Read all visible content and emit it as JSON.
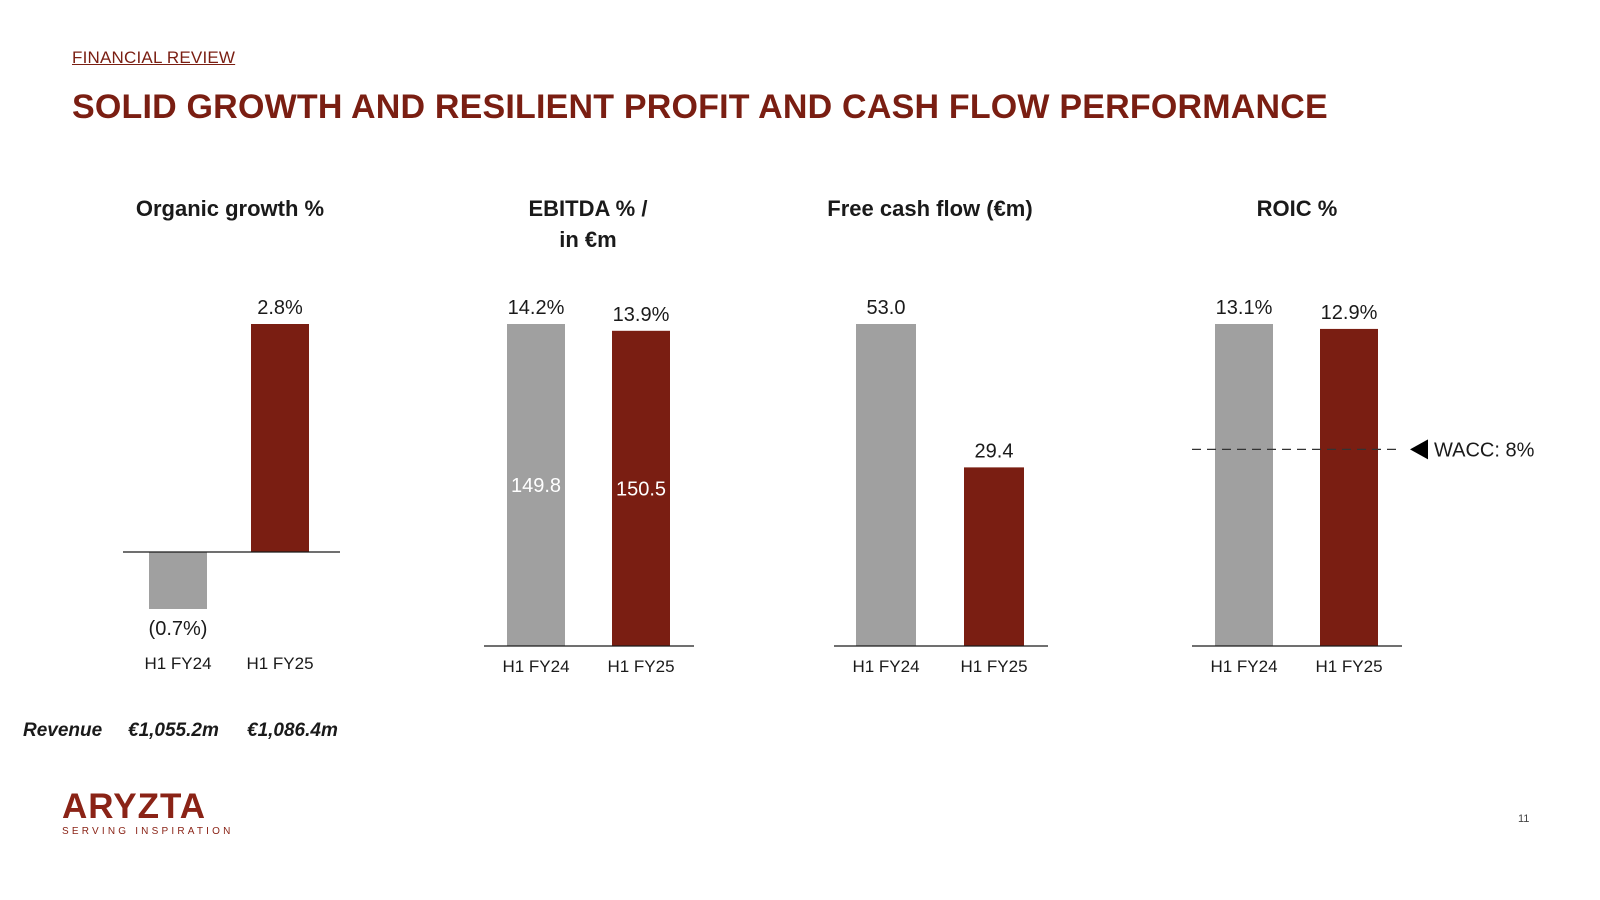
{
  "header": {
    "section": "FINANCIAL REVIEW",
    "title": "SOLID GROWTH AND RESILIENT PROFIT AND CASH FLOW PERFORMANCE"
  },
  "colors": {
    "prior": "#a0a0a0",
    "current": "#7a1e12",
    "brand": "#8a2316"
  },
  "chart_data": [
    {
      "type": "bar",
      "title": "Organic growth %",
      "categories": [
        "H1 FY24",
        "H1 FY25"
      ],
      "values": [
        -0.7,
        2.8
      ],
      "value_labels": [
        "(0.7%)",
        "2.8%"
      ]
    },
    {
      "type": "bar",
      "title_lines": [
        "EBITDA % /",
        "in €m"
      ],
      "categories": [
        "H1 FY24",
        "H1 FY25"
      ],
      "values": [
        14.2,
        13.9
      ],
      "value_labels": [
        "14.2%",
        "13.9%"
      ],
      "inner_labels": [
        "149.8",
        "150.5"
      ]
    },
    {
      "type": "bar",
      "title": "Free cash flow (€m)",
      "categories": [
        "H1 FY24",
        "H1 FY25"
      ],
      "values": [
        53.0,
        29.4
      ],
      "value_labels": [
        "53.0",
        "29.4"
      ]
    },
    {
      "type": "bar",
      "title": "ROIC %",
      "categories": [
        "H1 FY24",
        "H1 FY25"
      ],
      "values": [
        13.1,
        12.9
      ],
      "value_labels": [
        "13.1%",
        "12.9%"
      ],
      "reference_line": {
        "value": 8,
        "label": "WACC: 8%"
      }
    }
  ],
  "revenue": {
    "label": "Revenue",
    "values": [
      "€1,055.2m",
      "€1,086.4m"
    ]
  },
  "footer": {
    "logo_text": "ARYZTA",
    "logo_tagline": "SERVING INSPIRATION",
    "page_number": "11"
  }
}
